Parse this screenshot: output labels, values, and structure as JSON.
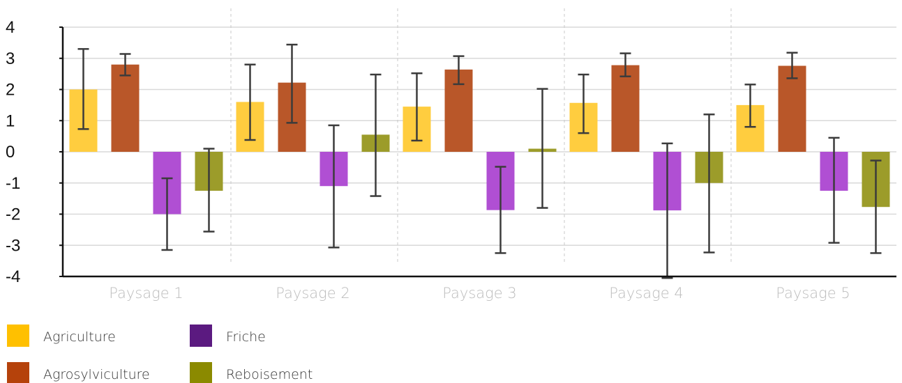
{
  "chart_data": {
    "type": "bar",
    "categories": [
      "Paysage 1",
      "Paysage 2",
      "Paysage 3",
      "Paysage 4",
      "Paysage 5"
    ],
    "ylim": [
      -4,
      4
    ],
    "yticks": [
      4,
      3,
      2,
      1,
      0,
      -1,
      -2,
      -3,
      -4
    ],
    "grid": true,
    "legend_position": "bottom-left",
    "series": [
      {
        "name": "Agriculture",
        "color": "#ffc000",
        "bar_color": "#ffcd3f",
        "values": [
          2.0,
          1.6,
          1.45,
          1.57,
          1.5
        ],
        "error_low": [
          0.73,
          0.38,
          0.36,
          0.6,
          0.8
        ],
        "error_high": [
          3.3,
          2.8,
          2.52,
          2.48,
          2.16
        ]
      },
      {
        "name": "Agrosylviculture",
        "color": "#b5420b",
        "bar_color": "#b95729",
        "values": [
          2.8,
          2.22,
          2.64,
          2.78,
          2.76
        ],
        "error_low": [
          2.45,
          0.93,
          2.17,
          2.42,
          2.36
        ],
        "error_high": [
          3.14,
          3.44,
          3.07,
          3.16,
          3.18
        ]
      },
      {
        "name": "Friche",
        "color": "#5b1a80",
        "bar_color": "#b04fd3",
        "values": [
          -2.0,
          -1.1,
          -1.87,
          -1.88,
          -1.25
        ],
        "error_low": [
          -3.15,
          -3.07,
          -3.25,
          -4.05,
          -2.92
        ],
        "error_high": [
          -0.85,
          0.85,
          -0.48,
          0.27,
          0.45
        ]
      },
      {
        "name": "Reboisement",
        "color": "#8b8a00",
        "bar_color": "#9c9c2a",
        "values": [
          -1.25,
          0.55,
          0.1,
          -1.0,
          -1.77
        ],
        "error_low": [
          -2.56,
          -1.42,
          -1.8,
          -3.23,
          -3.25
        ],
        "error_high": [
          0.1,
          2.48,
          2.02,
          1.2,
          -0.28
        ]
      }
    ]
  }
}
